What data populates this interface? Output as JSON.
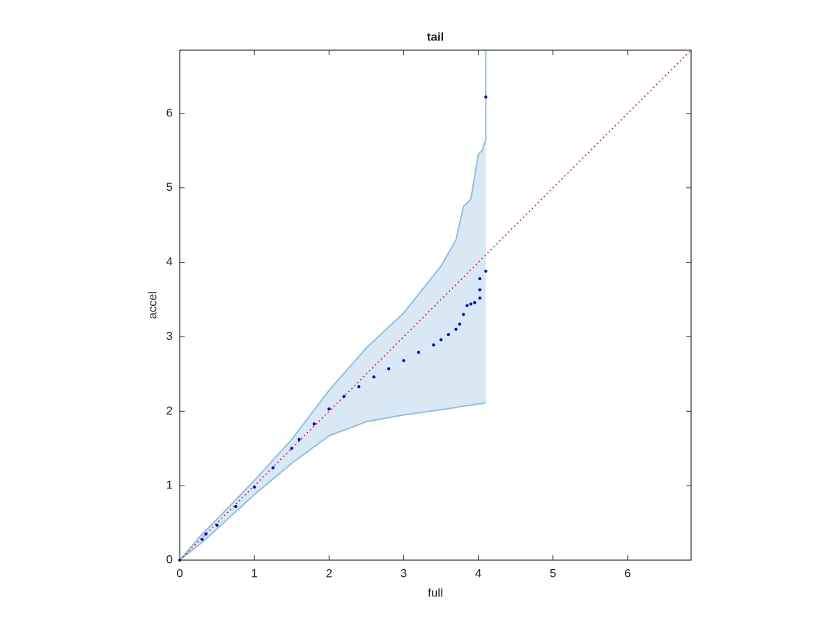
{
  "chart_data": {
    "type": "scatter",
    "title": "tail",
    "x_label": "full",
    "y_label": "accel",
    "xlim": [
      0,
      6.85
    ],
    "ylim": [
      0,
      6.85
    ],
    "xticks": [
      0,
      1,
      2,
      3,
      4,
      5,
      6
    ],
    "yticks": [
      0,
      1,
      2,
      3,
      4,
      5,
      6
    ],
    "grid": false,
    "points": {
      "color": "#0000ee",
      "x": [
        0,
        0.3,
        0.35,
        0.5,
        0.75,
        1.0,
        1.25,
        1.5,
        1.6,
        1.8,
        2.0,
        2.2,
        2.4,
        2.6,
        2.8,
        3.0,
        3.2,
        3.4,
        3.5,
        3.6,
        3.7,
        3.75,
        3.8,
        3.85,
        3.9,
        3.95,
        4.02,
        4.02,
        4.02,
        4.1,
        4.1
      ],
      "y": [
        0,
        0.28,
        0.35,
        0.47,
        0.72,
        0.98,
        1.24,
        1.5,
        1.62,
        1.83,
        2.03,
        2.2,
        2.33,
        2.46,
        2.57,
        2.68,
        2.79,
        2.89,
        2.96,
        3.03,
        3.1,
        3.17,
        3.3,
        3.42,
        3.44,
        3.46,
        3.52,
        3.63,
        3.78,
        3.88,
        6.22
      ]
    },
    "band": {
      "color": "#8dbfe0",
      "fill": "#d8e8f4",
      "x": [
        0,
        0.3,
        0.5,
        1,
        1.5,
        2,
        2.5,
        3,
        3.5,
        3.7,
        3.8,
        3.9,
        4.0,
        4.05,
        4.1,
        4.1
      ],
      "upper": [
        0,
        0.35,
        0.55,
        1.07,
        1.62,
        2.28,
        2.85,
        3.32,
        3.95,
        4.3,
        4.75,
        4.85,
        5.45,
        5.5,
        5.65,
        6.85
      ],
      "lower": [
        0,
        0.24,
        0.42,
        0.88,
        1.3,
        1.67,
        1.86,
        1.95,
        2.02,
        2.05,
        2.07,
        2.08,
        2.1,
        2.1,
        2.12,
        2.12
      ]
    },
    "reference_line": {
      "color": "#ee0000",
      "x": [
        0,
        6.85
      ],
      "y": [
        0,
        6.85
      ]
    }
  }
}
